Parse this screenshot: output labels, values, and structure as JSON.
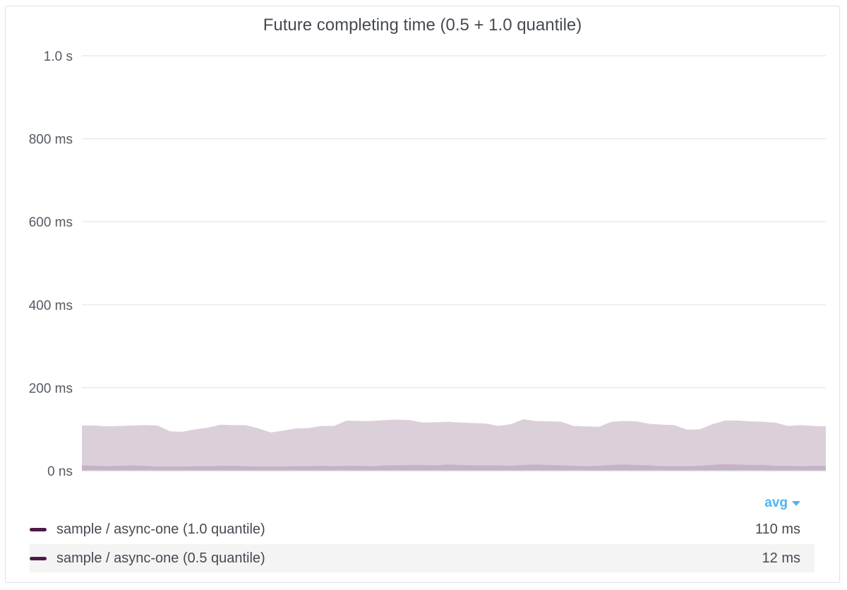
{
  "title": "Future completing time (0.5 + 1.0 quantile)",
  "colors": {
    "series_q100_fill": "#dbd0da",
    "series_q050_fill": "#c7b1c6",
    "legend_swatch": "#4d1a4b",
    "aggregation": "#4fb3f0"
  },
  "legend": {
    "aggregation_label": "avg",
    "rows": [
      {
        "label": "sample / async-one (1.0 quantile)",
        "value": "110 ms"
      },
      {
        "label": "sample / async-one (0.5 quantile)",
        "value": "12 ms"
      }
    ]
  },
  "chart_data": {
    "type": "area",
    "title": "Future completing time (0.5 + 1.0 quantile)",
    "xlabel": "",
    "ylabel": "",
    "y_unit": "ms",
    "ylim": [
      0,
      1000
    ],
    "yticks": [
      {
        "value": 0,
        "label": "0 ns"
      },
      {
        "value": 200,
        "label": "200 ms"
      },
      {
        "value": 400,
        "label": "400 ms"
      },
      {
        "value": 600,
        "label": "600 ms"
      },
      {
        "value": 800,
        "label": "800 ms"
      },
      {
        "value": 1000,
        "label": "1.0 s"
      }
    ],
    "grid": true,
    "series": [
      {
        "name": "sample / async-one (1.0 quantile)",
        "values": [
          109,
          109,
          107,
          108,
          109,
          110,
          109,
          95,
          94,
          100,
          104,
          111,
          110,
          110,
          102,
          92,
          97,
          102,
          103,
          108,
          108,
          121,
          120,
          120,
          122,
          123,
          122,
          116,
          117,
          118,
          116,
          115,
          114,
          108,
          112,
          124,
          120,
          119,
          118,
          108,
          107,
          106,
          118,
          120,
          119,
          113,
          111,
          110,
          99,
          100,
          112,
          121,
          121,
          119,
          118,
          116,
          108,
          110,
          108,
          107
        ]
      },
      {
        "name": "sample / async-one (0.5 quantile)",
        "values": [
          13,
          12,
          11,
          12,
          13,
          12,
          10,
          10,
          10,
          11,
          11,
          12,
          12,
          11,
          10,
          10,
          10,
          11,
          11,
          12,
          11,
          12,
          12,
          11,
          13,
          13,
          14,
          14,
          13,
          15,
          14,
          13,
          13,
          13,
          12,
          14,
          15,
          14,
          13,
          12,
          11,
          12,
          14,
          15,
          14,
          13,
          11,
          11,
          11,
          12,
          14,
          16,
          15,
          14,
          14,
          12,
          12,
          11,
          12,
          12
        ]
      }
    ]
  }
}
